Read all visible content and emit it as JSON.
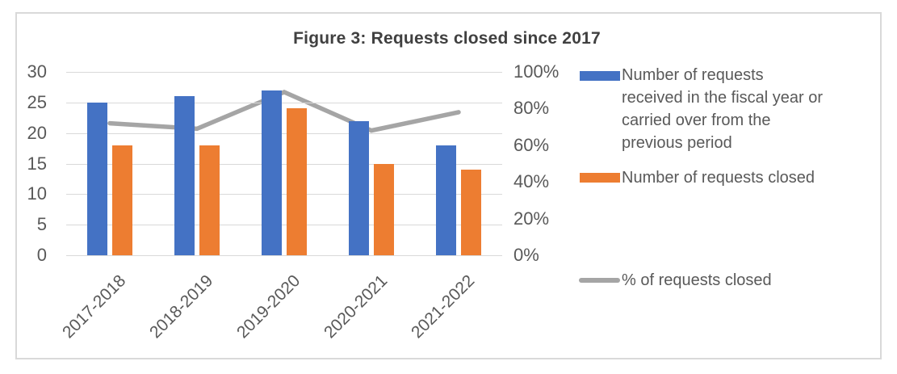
{
  "figure": {
    "title": "Figure 3: Requests closed since 2017"
  },
  "chart_data": {
    "type": "combo-bar-line",
    "title": "Figure 3: Requests closed since 2017",
    "categories": [
      "2017-2018",
      "2018-2019",
      "2019-2020",
      "2020-2021",
      "2021-2022"
    ],
    "series": [
      {
        "name": "Number of requests received in the fiscal year or carried over from the previous period",
        "type": "bar",
        "axis": "left",
        "color": "#4472C4",
        "values": [
          25,
          26,
          27,
          22,
          18
        ]
      },
      {
        "name": "Number of requests closed",
        "type": "bar",
        "axis": "left",
        "color": "#ED7D31",
        "values": [
          18,
          18,
          24,
          15,
          14
        ]
      },
      {
        "name": "%  of requests closed",
        "type": "line",
        "axis": "right",
        "color": "#A5A5A5",
        "values_pct": [
          72,
          69,
          89,
          68,
          78
        ]
      }
    ],
    "left_axis": {
      "min": 0,
      "max": 30,
      "step": 5,
      "tick_labels": [
        "0",
        "5",
        "10",
        "15",
        "20",
        "25",
        "30"
      ]
    },
    "right_axis": {
      "min": 0,
      "max": 100,
      "step": 20,
      "tick_labels": [
        "0%",
        "20%",
        "40%",
        "60%",
        "80%",
        "100%"
      ]
    },
    "grid": true,
    "legend_position": "right"
  },
  "legend": {
    "items": [
      {
        "swatch": "bar",
        "color": "#4472C4",
        "lines": [
          "Number of requests",
          "received in the fiscal year or",
          "carried over from the",
          "previous period"
        ]
      },
      {
        "swatch": "bar",
        "color": "#ED7D31",
        "lines": [
          "Number of requests closed"
        ]
      },
      {
        "swatch": "line",
        "color": "#A5A5A5",
        "lines": [
          "%  of requests closed"
        ]
      }
    ]
  },
  "colors": {
    "bar_received": "#4472C4",
    "bar_closed": "#ED7D31",
    "pct_line": "#A5A5A5",
    "gridline": "#D9D9D9",
    "frame_border": "#D9D9D9",
    "title_text": "#404040",
    "axis_text": "#595959"
  }
}
